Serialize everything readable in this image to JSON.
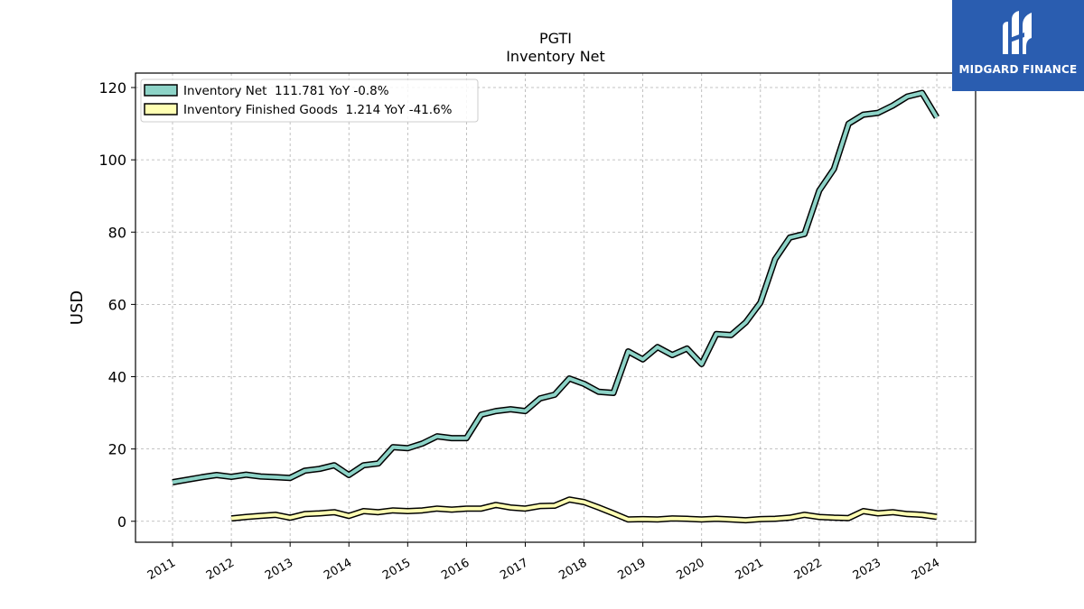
{
  "chart_data": {
    "type": "line",
    "title": "PGTI",
    "subtitle": "Inventory Net",
    "ylabel": "USD",
    "xlabel": "",
    "ylim": [
      -5.8,
      124
    ],
    "xlim": [
      2010.37,
      2024.66
    ],
    "yticks": [
      0,
      20,
      40,
      60,
      80,
      100,
      120
    ],
    "xticks": [
      2011,
      2012,
      2013,
      2014,
      2015,
      2016,
      2017,
      2018,
      2019,
      2020,
      2021,
      2022,
      2023,
      2024
    ],
    "grid": true,
    "legend_position": "top-left",
    "series": [
      {
        "name": "Inventory Net  111.781 YoY -0.8%",
        "color": "#8dd3c7",
        "x": [
          2011.0,
          2011.25,
          2011.5,
          2011.75,
          2012.0,
          2012.25,
          2012.5,
          2012.75,
          2013.0,
          2013.25,
          2013.5,
          2013.75,
          2014.0,
          2014.25,
          2014.5,
          2014.75,
          2015.0,
          2015.25,
          2015.5,
          2015.75,
          2016.0,
          2016.25,
          2016.5,
          2016.75,
          2017.0,
          2017.25,
          2017.5,
          2017.75,
          2018.0,
          2018.25,
          2018.5,
          2018.75,
          2019.0,
          2019.25,
          2019.5,
          2019.75,
          2020.0,
          2020.25,
          2020.5,
          2020.75,
          2021.0,
          2021.25,
          2021.5,
          2021.75,
          2022.0,
          2022.25,
          2022.5,
          2022.75,
          2023.0,
          2023.25,
          2023.5,
          2023.75,
          2024.0
        ],
        "values": [
          10.8,
          11.5,
          12.2,
          12.8,
          12.3,
          12.9,
          12.4,
          12.2,
          12.0,
          14.0,
          14.5,
          15.5,
          12.8,
          15.5,
          16.0,
          20.5,
          20.2,
          21.5,
          23.5,
          23.0,
          23.0,
          29.5,
          30.5,
          31.0,
          30.5,
          34.0,
          35.0,
          39.5,
          38.0,
          35.8,
          35.5,
          47.0,
          44.8,
          48.2,
          46.0,
          47.8,
          43.5,
          51.8,
          51.5,
          55.0,
          60.5,
          72.5,
          78.5,
          79.5,
          91.5,
          97.5,
          110.0,
          112.5,
          113.0,
          115.0,
          117.5,
          118.5,
          111.781
        ]
      },
      {
        "name": "Inventory Finished Goods  1.214 YoY -41.6%",
        "color": "#ffffb3",
        "x": [
          2012.0,
          2012.25,
          2012.5,
          2012.75,
          2013.0,
          2013.25,
          2013.5,
          2013.75,
          2014.0,
          2014.25,
          2014.5,
          2014.75,
          2015.0,
          2015.25,
          2015.5,
          2015.75,
          2016.0,
          2016.25,
          2016.5,
          2016.75,
          2017.0,
          2017.25,
          2017.5,
          2017.75,
          2018.0,
          2018.25,
          2018.5,
          2018.75,
          2019.0,
          2019.25,
          2019.5,
          2019.75,
          2020.0,
          2020.25,
          2020.5,
          2020.75,
          2021.0,
          2021.25,
          2021.5,
          2021.75,
          2022.0,
          2022.25,
          2022.5,
          2022.75,
          2023.0,
          2023.25,
          2023.5,
          2023.75,
          2024.0
        ],
        "values": [
          0.8,
          1.2,
          1.5,
          1.8,
          1.0,
          2.0,
          2.2,
          2.5,
          1.5,
          2.8,
          2.5,
          3.0,
          2.8,
          3.0,
          3.5,
          3.2,
          3.5,
          3.5,
          4.5,
          3.8,
          3.5,
          4.2,
          4.3,
          6.0,
          5.3,
          3.8,
          2.2,
          0.5,
          0.6,
          0.5,
          0.8,
          0.7,
          0.5,
          0.7,
          0.5,
          0.3,
          0.6,
          0.7,
          1.0,
          1.8,
          1.2,
          1.0,
          0.9,
          2.8,
          2.2,
          2.5,
          2.0,
          1.8,
          1.214
        ]
      }
    ]
  },
  "logo": {
    "text": "MIDGARD FINANCE",
    "background": "#2a5db0"
  }
}
